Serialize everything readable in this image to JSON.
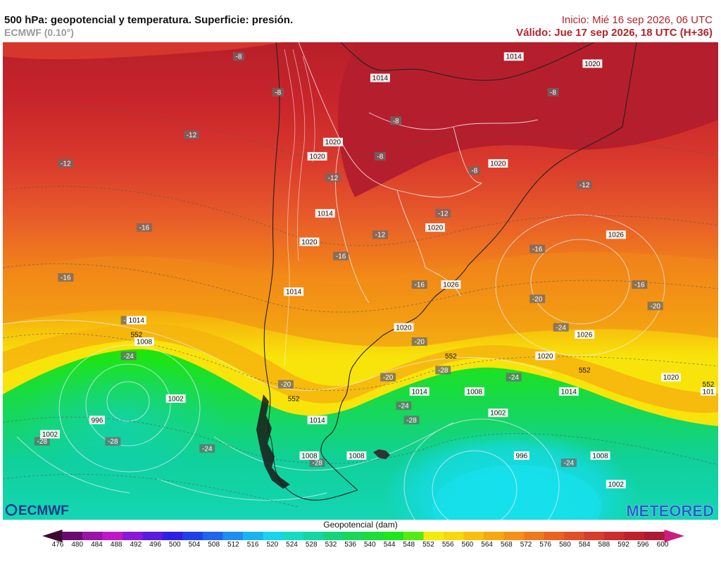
{
  "header": {
    "title": "500 hPa: geopotencial y temperatura. Superficie: presión.",
    "model": "ECMWF (0.10°)",
    "init": "Inicio: Mié 16 sep 2026, 06 UTC",
    "valid": "Válido: Jue 17 sep 2026, 18 UTC (H+36)"
  },
  "logos": {
    "left": "ECMWF",
    "right": "METEORED"
  },
  "colors": {
    "dark_red": "#b8202a",
    "red": "#d93a2c",
    "orange_red": "#e6592a",
    "orange": "#f07d1c",
    "light_orange": "#f6a80e",
    "yellow": "#f8e40a",
    "green": "#1fe60a",
    "green2": "#18da4a",
    "teal": "#10d09a",
    "cyan": "#16dcea"
  },
  "legend": {
    "title": "Geopotencial (dam)",
    "ticks": [
      "476",
      "480",
      "484",
      "488",
      "492",
      "496",
      "500",
      "504",
      "508",
      "512",
      "516",
      "520",
      "524",
      "528",
      "532",
      "536",
      "540",
      "544",
      "548",
      "552",
      "556",
      "560",
      "564",
      "568",
      "572",
      "576",
      "580",
      "584",
      "588",
      "592",
      "596",
      "600"
    ],
    "colors": [
      "#3a0a30",
      "#6a0a70",
      "#9a14a8",
      "#c018c8",
      "#8a18d8",
      "#5a1ce0",
      "#3020e6",
      "#2040ec",
      "#2064f0",
      "#1e8ef2",
      "#18b4f2",
      "#16d4ec",
      "#14dcc4",
      "#12d8a0",
      "#14d47c",
      "#18d858",
      "#1ade3a",
      "#1ee61c",
      "#54ec10",
      "#f2ec0a",
      "#f8d80a",
      "#f8c00c",
      "#f6a80e",
      "#f49014",
      "#f07a1a",
      "#ea6220",
      "#e24e26",
      "#d83c2a",
      "#cc2c2c",
      "#c0202e",
      "#ae1a34",
      "#cc1c86"
    ]
  },
  "temperature_labels": [
    {
      "text": "-8",
      "lon": -80,
      "lat": -5
    },
    {
      "text": "-8",
      "lon": -75,
      "lat": -10
    },
    {
      "text": "-8",
      "lon": -60,
      "lat": -14
    },
    {
      "text": "-8",
      "lon": -62,
      "lat": -19
    },
    {
      "text": "-8",
      "lon": -50,
      "lat": -21
    },
    {
      "text": "-8",
      "lon": -40,
      "lat": -10
    },
    {
      "text": "-12",
      "lon": -102,
      "lat": -20
    },
    {
      "text": "-12",
      "lon": -86,
      "lat": -16
    },
    {
      "text": "-12",
      "lon": -68,
      "lat": -22
    },
    {
      "text": "-12",
      "lon": -62,
      "lat": -30
    },
    {
      "text": "-12",
      "lon": -54,
      "lat": -27
    },
    {
      "text": "-12",
      "lon": -36,
      "lat": -23
    },
    {
      "text": "-16",
      "lon": -92,
      "lat": -29
    },
    {
      "text": "-16",
      "lon": -102,
      "lat": -36
    },
    {
      "text": "-16",
      "lon": -67,
      "lat": -33
    },
    {
      "text": "-16",
      "lon": -57,
      "lat": -37
    },
    {
      "text": "-16",
      "lon": -42,
      "lat": -32
    },
    {
      "text": "-16",
      "lon": -29,
      "lat": -37
    },
    {
      "text": "-20",
      "lon": -94,
      "lat": -42
    },
    {
      "text": "-20",
      "lon": -74,
      "lat": -51
    },
    {
      "text": "-20",
      "lon": -61,
      "lat": -50
    },
    {
      "text": "-20",
      "lon": -57,
      "lat": -45
    },
    {
      "text": "-20",
      "lon": -42,
      "lat": -39
    },
    {
      "text": "-20",
      "lon": -27,
      "lat": -40
    },
    {
      "text": "-24",
      "lon": -94,
      "lat": -47
    },
    {
      "text": "-24",
      "lon": -59,
      "lat": -54
    },
    {
      "text": "-24",
      "lon": -45,
      "lat": -50
    },
    {
      "text": "-24",
      "lon": -39,
      "lat": -43
    },
    {
      "text": "-24",
      "lon": -84,
      "lat": -60
    },
    {
      "text": "-24",
      "lon": -38,
      "lat": -62
    },
    {
      "text": "-28",
      "lon": -54,
      "lat": -49
    },
    {
      "text": "-28",
      "lon": -58,
      "lat": -56
    },
    {
      "text": "-28",
      "lon": -105,
      "lat": -59
    },
    {
      "text": "-28",
      "lon": -96,
      "lat": -59
    },
    {
      "text": "-28",
      "lon": -70,
      "lat": -62
    }
  ],
  "pressure_labels": [
    {
      "text": "1014",
      "lon": -62,
      "lat": -8
    },
    {
      "text": "1014",
      "lon": -45,
      "lat": -5
    },
    {
      "text": "1020",
      "lon": -68,
      "lat": -17
    },
    {
      "text": "1020",
      "lon": -70,
      "lat": -19
    },
    {
      "text": "1020",
      "lon": -47,
      "lat": -20
    },
    {
      "text": "1020",
      "lon": -35,
      "lat": -6
    },
    {
      "text": "1014",
      "lon": -69,
      "lat": -27
    },
    {
      "text": "1020",
      "lon": -55,
      "lat": -29
    },
    {
      "text": "1020",
      "lon": -71,
      "lat": -31
    },
    {
      "text": "1026",
      "lon": -32,
      "lat": -30
    },
    {
      "text": "1026",
      "lon": -53,
      "lat": -37
    },
    {
      "text": "1014",
      "lon": -73,
      "lat": -38
    },
    {
      "text": "1020",
      "lon": -59,
      "lat": -43
    },
    {
      "text": "1014",
      "lon": -93,
      "lat": -42
    },
    {
      "text": "1026",
      "lon": -36,
      "lat": -44
    },
    {
      "text": "1008",
      "lon": -92,
      "lat": -45
    },
    {
      "text": "1020",
      "lon": -41,
      "lat": -47
    },
    {
      "text": "1020",
      "lon": -25,
      "lat": -50
    },
    {
      "text": "1002",
      "lon": -88,
      "lat": -53
    },
    {
      "text": "1014",
      "lon": -57,
      "lat": -52
    },
    {
      "text": "1008",
      "lon": -50,
      "lat": -52
    },
    {
      "text": "1014",
      "lon": -38,
      "lat": -52
    },
    {
      "text": "996",
      "lon": -98,
      "lat": -56
    },
    {
      "text": "1014",
      "lon": -70,
      "lat": -56
    },
    {
      "text": "1002",
      "lon": -47,
      "lat": -55
    },
    {
      "text": "1002",
      "lon": -104,
      "lat": -58
    },
    {
      "text": "1008",
      "lon": -71,
      "lat": -61
    },
    {
      "text": "1008",
      "lon": -65,
      "lat": -61
    },
    {
      "text": "996",
      "lon": -44,
      "lat": -61
    },
    {
      "text": "1008",
      "lon": -34,
      "lat": -61
    },
    {
      "text": "1002",
      "lon": -32,
      "lat": -65
    },
    {
      "text": "101",
      "lon": -20,
      "lat": -52
    }
  ],
  "height_labels": [
    {
      "text": "552",
      "lon": -93,
      "lat": -44
    },
    {
      "text": "552",
      "lon": -53,
      "lat": -47
    },
    {
      "text": "552",
      "lon": -36,
      "lat": -49
    },
    {
      "text": "552",
      "lon": -20,
      "lat": -51
    },
    {
      "text": "552",
      "lon": -73,
      "lat": -53
    }
  ]
}
